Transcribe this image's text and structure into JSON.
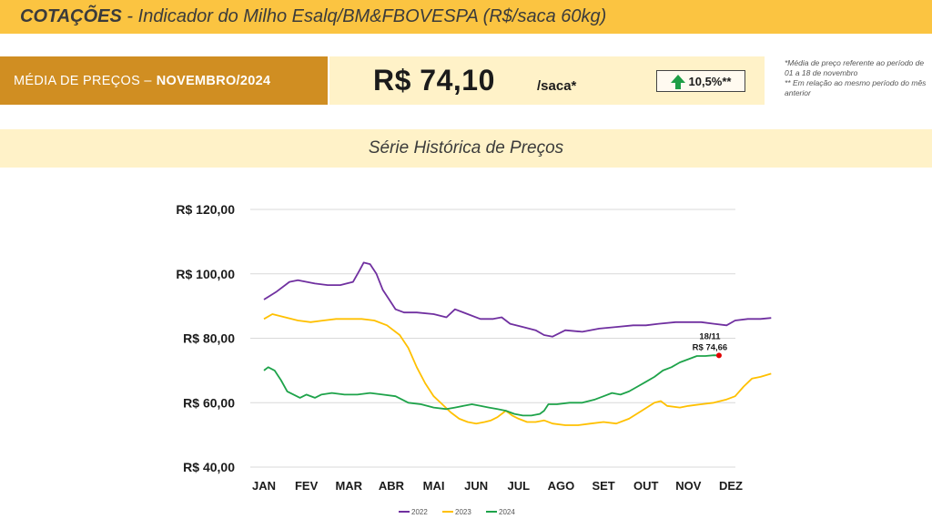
{
  "header": {
    "title_bold": "COTAÇÕES",
    "title_rest": " - Indicador do Milho Esalq/BM&FBOVESPA (R$/saca 60kg)"
  },
  "summary": {
    "label": "MÉDIA DE PREÇOS –",
    "month": "NOVEMBRO/2024",
    "price": "R$ 74,10",
    "unit": "/saca*",
    "variation": "10,5%**",
    "note1": "*Média de preço referente ao período de 01 a 18 de novembro",
    "note2": "** Em relação ao mesmo período do mês anterior"
  },
  "section_title": "Série Histórica de Preços",
  "colors": {
    "top_bar": "#fbc441",
    "label_box": "#d08e22",
    "light_box": "#fff2c8",
    "series_2022": "#7030a0",
    "series_2023": "#ffc000",
    "series_2024": "#1ea34a",
    "marker": "#e00000"
  },
  "chart_data": {
    "type": "line",
    "categories": [
      "JAN",
      "FEV",
      "MAR",
      "ABR",
      "MAI",
      "JUN",
      "JUL",
      "AGO",
      "SET",
      "OUT",
      "NOV",
      "DEZ"
    ],
    "y_ticks": [
      "R$ 40,00",
      "R$ 60,00",
      "R$ 80,00",
      "R$ 100,00",
      "R$ 120,00"
    ],
    "ylim": [
      40,
      120
    ],
    "grid": true,
    "legend_position": "bottom",
    "annotation": {
      "date": "18/11",
      "value": "R$ 74,66",
      "x": 10.72,
      "y": 74.66
    },
    "series": [
      {
        "name": "2022",
        "color": "#7030a0",
        "points": [
          [
            0,
            92
          ],
          [
            0.3,
            94.5
          ],
          [
            0.6,
            97.5
          ],
          [
            0.8,
            98
          ],
          [
            1.2,
            97
          ],
          [
            1.5,
            96.5
          ],
          [
            1.8,
            96.5
          ],
          [
            2.1,
            97.5
          ],
          [
            2.25,
            101
          ],
          [
            2.35,
            103.5
          ],
          [
            2.5,
            103
          ],
          [
            2.65,
            100
          ],
          [
            2.8,
            95
          ],
          [
            2.95,
            92
          ],
          [
            3.1,
            89
          ],
          [
            3.3,
            88
          ],
          [
            3.6,
            88
          ],
          [
            4,
            87.5
          ],
          [
            4.3,
            86.5
          ],
          [
            4.5,
            89
          ],
          [
            4.8,
            87.5
          ],
          [
            5.1,
            86
          ],
          [
            5.4,
            86
          ],
          [
            5.6,
            86.5
          ],
          [
            5.8,
            84.5
          ],
          [
            6.1,
            83.5
          ],
          [
            6.4,
            82.5
          ],
          [
            6.6,
            81
          ],
          [
            6.8,
            80.5
          ],
          [
            7.1,
            82.5
          ],
          [
            7.5,
            82
          ],
          [
            7.9,
            83
          ],
          [
            8.3,
            83.5
          ],
          [
            8.7,
            84
          ],
          [
            9,
            84
          ],
          [
            9.3,
            84.5
          ],
          [
            9.7,
            85
          ],
          [
            10,
            85
          ],
          [
            10.3,
            85
          ],
          [
            10.6,
            84.5
          ],
          [
            10.9,
            84
          ],
          [
            11.1,
            85.5
          ],
          [
            11.4,
            86
          ],
          [
            11.7,
            86
          ],
          [
            11.95,
            86.3
          ]
        ]
      },
      {
        "name": "2023",
        "color": "#ffc000",
        "points": [
          [
            0,
            86
          ],
          [
            0.2,
            87.5
          ],
          [
            0.5,
            86.5
          ],
          [
            0.8,
            85.5
          ],
          [
            1.1,
            85
          ],
          [
            1.4,
            85.5
          ],
          [
            1.7,
            86
          ],
          [
            2,
            86
          ],
          [
            2.3,
            86
          ],
          [
            2.6,
            85.5
          ],
          [
            2.9,
            84
          ],
          [
            3.2,
            81
          ],
          [
            3.4,
            77
          ],
          [
            3.6,
            71
          ],
          [
            3.8,
            66
          ],
          [
            4,
            62
          ],
          [
            4.2,
            59.5
          ],
          [
            4.4,
            57
          ],
          [
            4.6,
            55
          ],
          [
            4.8,
            54
          ],
          [
            5,
            53.5
          ],
          [
            5.2,
            54
          ],
          [
            5.35,
            54.5
          ],
          [
            5.5,
            55.5
          ],
          [
            5.7,
            57.5
          ],
          [
            5.85,
            56
          ],
          [
            6,
            55
          ],
          [
            6.2,
            54
          ],
          [
            6.4,
            54
          ],
          [
            6.6,
            54.5
          ],
          [
            6.8,
            53.5
          ],
          [
            7.1,
            53
          ],
          [
            7.4,
            53
          ],
          [
            7.7,
            53.5
          ],
          [
            8,
            54
          ],
          [
            8.3,
            53.5
          ],
          [
            8.6,
            55
          ],
          [
            8.9,
            57.5
          ],
          [
            9.2,
            60
          ],
          [
            9.35,
            60.5
          ],
          [
            9.5,
            59
          ],
          [
            9.8,
            58.5
          ],
          [
            10,
            59
          ],
          [
            10.3,
            59.5
          ],
          [
            10.6,
            60
          ],
          [
            10.9,
            61
          ],
          [
            11.1,
            62
          ],
          [
            11.3,
            65
          ],
          [
            11.5,
            67.5
          ],
          [
            11.7,
            68
          ],
          [
            11.95,
            69
          ]
        ]
      },
      {
        "name": "2024",
        "color": "#1ea34a",
        "points": [
          [
            0,
            70
          ],
          [
            0.1,
            71
          ],
          [
            0.25,
            70
          ],
          [
            0.4,
            67
          ],
          [
            0.55,
            63.5
          ],
          [
            0.7,
            62.5
          ],
          [
            0.85,
            61.5
          ],
          [
            1,
            62.5
          ],
          [
            1.2,
            61.5
          ],
          [
            1.35,
            62.5
          ],
          [
            1.6,
            63
          ],
          [
            1.9,
            62.5
          ],
          [
            2.2,
            62.5
          ],
          [
            2.5,
            63
          ],
          [
            2.8,
            62.5
          ],
          [
            3.1,
            62
          ],
          [
            3.4,
            60
          ],
          [
            3.7,
            59.5
          ],
          [
            4,
            58.5
          ],
          [
            4.3,
            58
          ],
          [
            4.5,
            58.5
          ],
          [
            4.7,
            59
          ],
          [
            4.9,
            59.5
          ],
          [
            5.1,
            59
          ],
          [
            5.3,
            58.5
          ],
          [
            5.5,
            58
          ],
          [
            5.7,
            57.5
          ],
          [
            5.9,
            56.5
          ],
          [
            6.1,
            56
          ],
          [
            6.3,
            56
          ],
          [
            6.5,
            56.5
          ],
          [
            6.6,
            57.5
          ],
          [
            6.7,
            59.5
          ],
          [
            6.9,
            59.5
          ],
          [
            7.2,
            60
          ],
          [
            7.5,
            60
          ],
          [
            7.8,
            61
          ],
          [
            8,
            62
          ],
          [
            8.2,
            63
          ],
          [
            8.4,
            62.5
          ],
          [
            8.6,
            63.5
          ],
          [
            8.8,
            65
          ],
          [
            9,
            66.5
          ],
          [
            9.2,
            68
          ],
          [
            9.4,
            70
          ],
          [
            9.6,
            71
          ],
          [
            9.8,
            72.5
          ],
          [
            10,
            73.5
          ],
          [
            10.2,
            74.5
          ],
          [
            10.4,
            74.5
          ],
          [
            10.6,
            74.7
          ],
          [
            10.72,
            74.66
          ]
        ]
      }
    ]
  }
}
